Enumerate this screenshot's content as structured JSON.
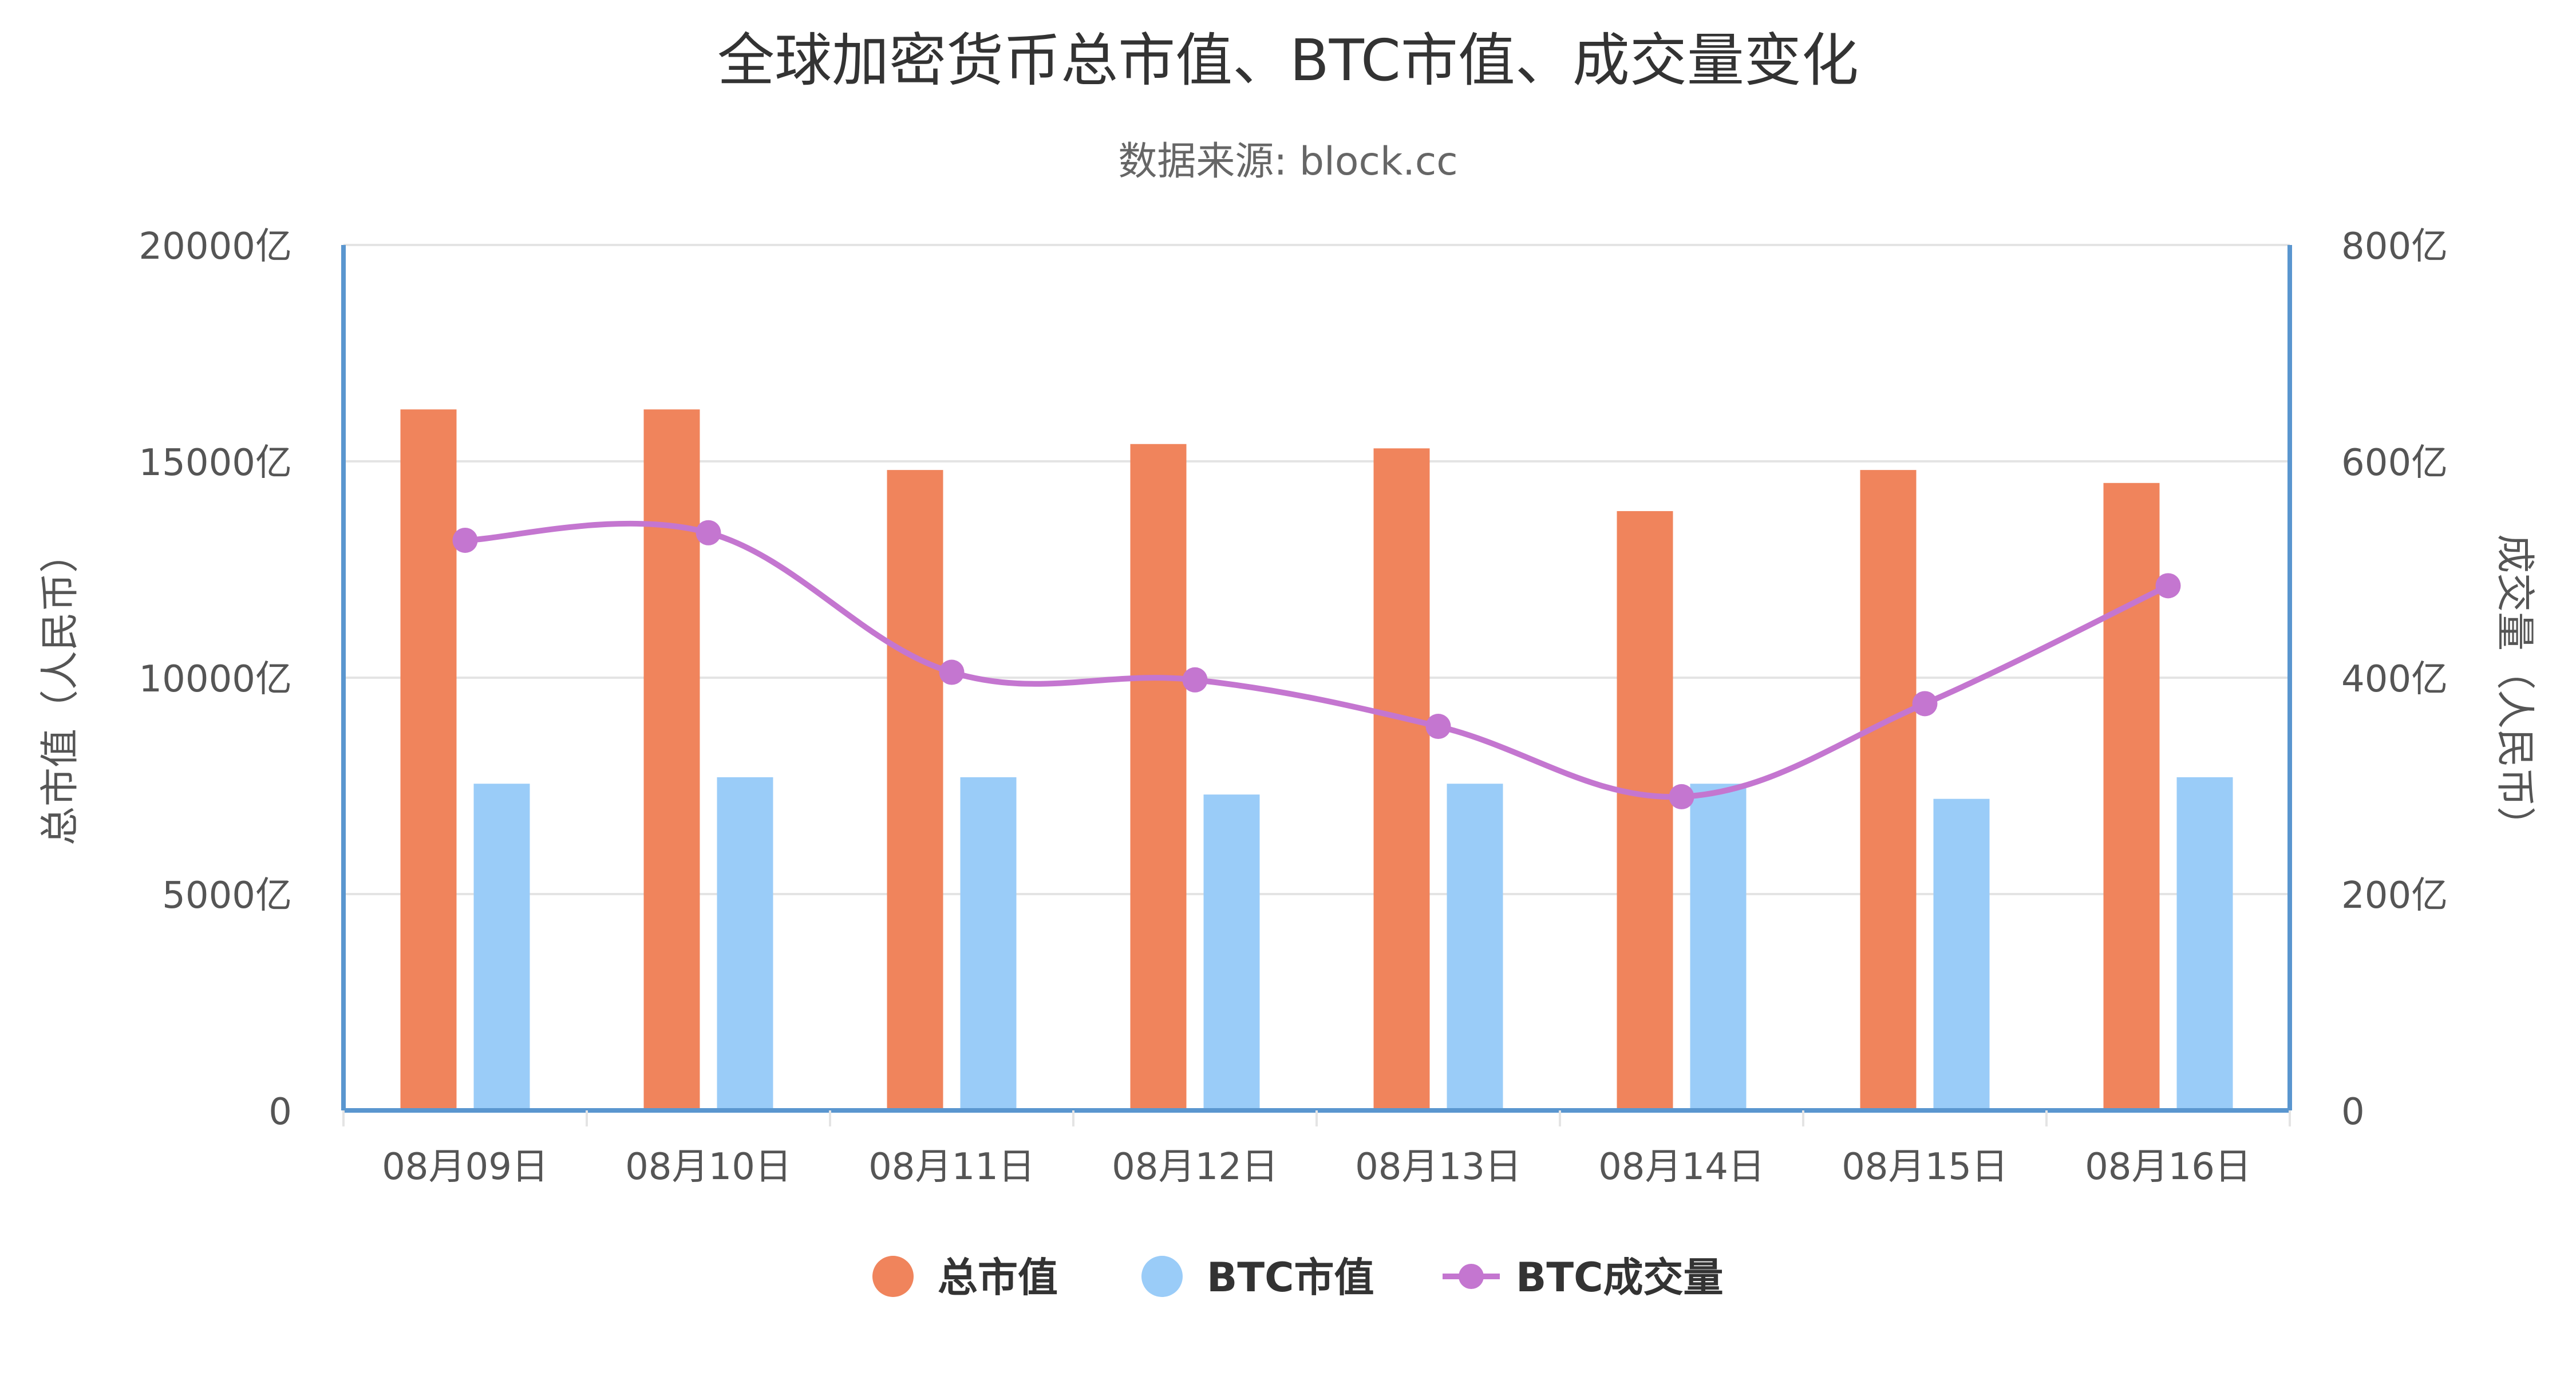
{
  "chart_data": {
    "type": "bar",
    "title": "全球加密货币总市值、BTC市值、成交量变化",
    "subtitle": "数据来源: block.cc",
    "categories": [
      "08月09日",
      "08月10日",
      "08月11日",
      "08月12日",
      "08月13日",
      "08月14日",
      "08月15日",
      "08月16日"
    ],
    "y_left": {
      "label": "总市值（人民币）",
      "ylim": [
        0,
        20000
      ],
      "ticks": [
        "0",
        "5000亿",
        "10000亿",
        "15000亿",
        "20000亿"
      ]
    },
    "y_right": {
      "label": "成交量（人民币）",
      "ylim": [
        0,
        800
      ],
      "ticks": [
        "0",
        "200亿",
        "400亿",
        "600亿",
        "800亿"
      ]
    },
    "grid": true,
    "legend_position": "bottom-center",
    "series": [
      {
        "name": "总市值",
        "kind": "bar",
        "axis": "left",
        "color": "#F0845C",
        "values": [
          16200,
          16200,
          14800,
          15400,
          15300,
          13850,
          14800,
          14500
        ]
      },
      {
        "name": "BTC市值",
        "kind": "bar",
        "axis": "left",
        "color": "#9ACCF8",
        "values": [
          7550,
          7700,
          7700,
          7300,
          7550,
          7550,
          7200,
          7700
        ]
      },
      {
        "name": "BTC成交量",
        "kind": "line",
        "axis": "right",
        "color": "#C476D0",
        "values": [
          527,
          534,
          405,
          398,
          355,
          290,
          376,
          485
        ]
      }
    ],
    "axis_color": "#5A96CF",
    "grid_color": "#E4E4E4",
    "text_color": "#555555",
    "title_color": "#333333"
  }
}
